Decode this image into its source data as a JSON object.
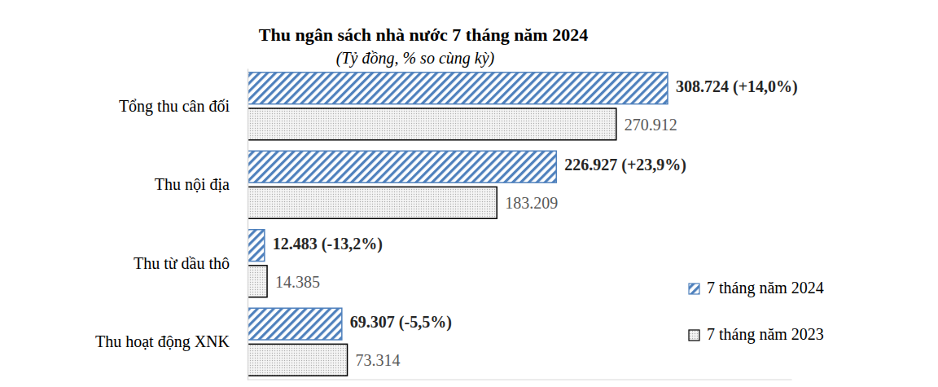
{
  "chart_data": {
    "type": "bar",
    "orientation": "horizontal",
    "title": "Thu ngân sách nhà nước 7 tháng năm 2024",
    "subtitle": "(Tỷ đồng, % so cùng kỳ)",
    "categories": [
      "Tổng thu cân đối",
      "Thu nội địa",
      "Thu từ dầu thô",
      "Thu hoạt động XNK"
    ],
    "series": [
      {
        "name": "7 tháng năm 2024",
        "color": "#4f81bd",
        "values": [
          308724,
          226927,
          12483,
          69307
        ],
        "value_labels": [
          "308.724 (+14,0%)",
          "226.927 (+23,9%)",
          "12.483 (-13,2%)",
          "69.307 (-5,5%)"
        ]
      },
      {
        "name": "7 tháng năm 2023",
        "color": "#000000",
        "values": [
          270912,
          183209,
          14385,
          73314
        ],
        "value_labels": [
          "270.912",
          "183.209",
          "14.385",
          "73.314"
        ]
      }
    ],
    "xlim": [
      0,
      400000
    ],
    "data_labels": true,
    "tick_labels": "y",
    "legend": "right",
    "grid": false
  }
}
